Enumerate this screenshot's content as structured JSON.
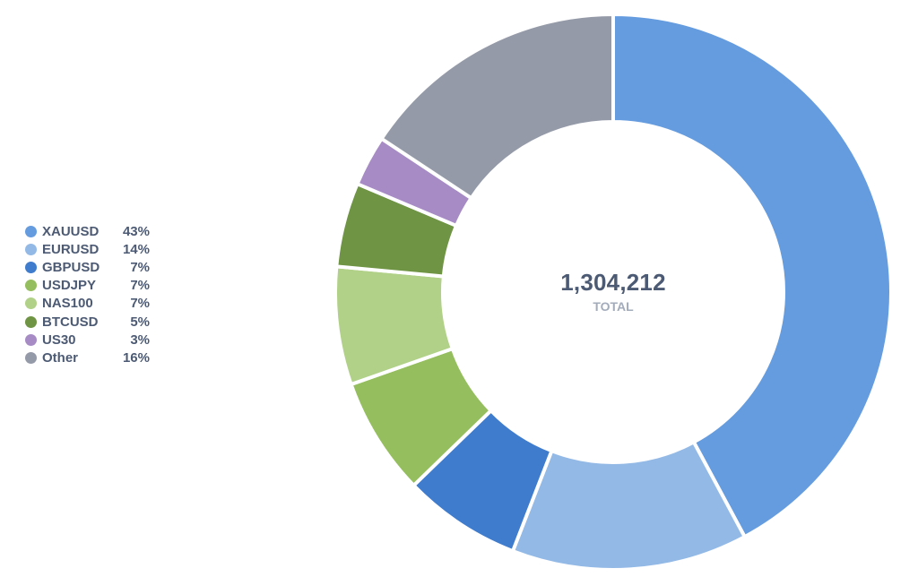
{
  "chart_data": {
    "type": "pie",
    "donut": true,
    "center": {
      "value": "1,304,212",
      "label": "TOTAL"
    },
    "legend_position": "left",
    "slices": [
      {
        "label": "XAUUSD",
        "percent_label": "43%",
        "value": 43,
        "color": "#659cdf"
      },
      {
        "label": "EURUSD",
        "percent_label": "14%",
        "value": 14,
        "color": "#93b9e6"
      },
      {
        "label": "GBPUSD",
        "percent_label": "7%",
        "value": 7,
        "color": "#3f7cce"
      },
      {
        "label": "USDJPY",
        "percent_label": "7%",
        "value": 7,
        "color": "#95be5e"
      },
      {
        "label": "NAS100",
        "percent_label": "7%",
        "value": 7,
        "color": "#b1d188"
      },
      {
        "label": "BTCUSD",
        "percent_label": "5%",
        "value": 5,
        "color": "#6f9443"
      },
      {
        "label": "US30",
        "percent_label": "3%",
        "value": 3,
        "color": "#a68bc5"
      },
      {
        "label": "Other",
        "percent_label": "16%",
        "value": 16,
        "color": "#959aa8"
      }
    ]
  }
}
